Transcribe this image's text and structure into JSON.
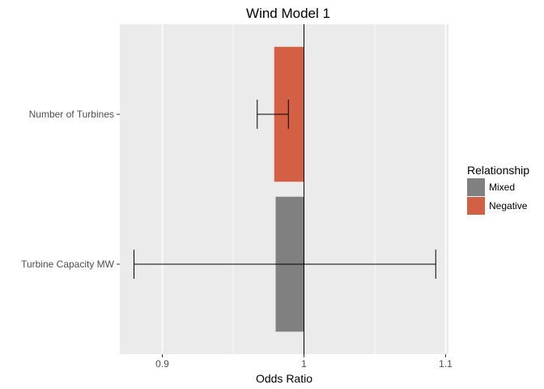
{
  "chart_data": {
    "type": "bar",
    "orientation": "horizontal",
    "title": "Wind Model 1",
    "xlabel": "Odds Ratio",
    "ylabel": "",
    "xlim": [
      0.87,
      1.102
    ],
    "baseline": 1,
    "x_ticks": [
      0.9,
      1,
      1.1
    ],
    "x_tick_labels": [
      "0.9",
      "1",
      "1.1"
    ],
    "grid": true,
    "legend": {
      "title": "Relationship",
      "position": "right",
      "entries": [
        {
          "label": "Mixed",
          "color": "#808080"
        },
        {
          "label": "Negative",
          "color": "#d35f45"
        }
      ]
    },
    "categories": [
      "Number of Turbines",
      "Turbine Capacity MW"
    ],
    "bars": [
      {
        "category": "Number of Turbines",
        "value": 0.979,
        "ci_low": 0.967,
        "ci_high": 0.989,
        "relationship": "Negative"
      },
      {
        "category": "Turbine Capacity MW",
        "value": 0.98,
        "ci_low": 0.88,
        "ci_high": 1.093,
        "relationship": "Mixed"
      }
    ]
  }
}
